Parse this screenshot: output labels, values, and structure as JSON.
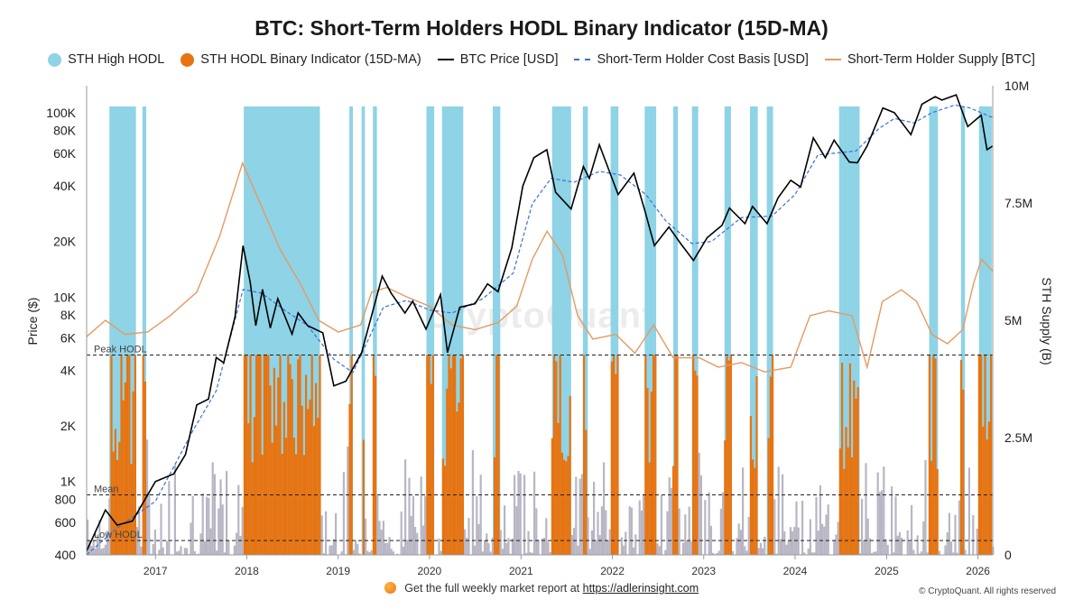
{
  "chart_data": {
    "type": "bar",
    "title": "BTC: Short-Term Holders HODL Binary Indicator (15D-MA)",
    "ylabel": "Price ($)",
    "y2label": "STH Supply (B)",
    "y_scale": "log",
    "ylim": [
      400,
      140000
    ],
    "y2lim": [
      0,
      10000000
    ],
    "x_range": [
      "2016-04-01",
      "2026-03-01"
    ],
    "x_ticks": [
      "2017",
      "2018",
      "2019",
      "2020",
      "2021",
      "2022",
      "2023",
      "2024",
      "2025",
      "2026"
    ],
    "y_ticks": [
      "100K",
      "80K",
      "60K",
      "40K",
      "20K",
      "10K",
      "8K",
      "6K",
      "4K",
      "2K",
      "1K",
      "800",
      "600",
      "400"
    ],
    "y2_ticks": [
      "10M",
      "7.5M",
      "5M",
      "2.5M",
      "0"
    ],
    "legend": [
      {
        "name": "STH High HODL",
        "color": "#8ed3e6",
        "kind": "dot"
      },
      {
        "name": "STH HODL Binary Indicator (15D-MA)",
        "color": "#e8730f",
        "kind": "dot"
      },
      {
        "name": "BTC Price [USD]",
        "color": "#000000",
        "kind": "line"
      },
      {
        "name": "Short-Term Holder Cost Basis [USD]",
        "color": "#3a6fd6",
        "kind": "dash"
      },
      {
        "name": "Short-Term Holder Supply [BTC]",
        "color": "#e59a62",
        "kind": "line"
      }
    ],
    "reference_lines": [
      {
        "label": "Peak HODL",
        "indicator_value": 14
      },
      {
        "label": "Mean",
        "indicator_value": 4.2
      },
      {
        "label": "Low HODL",
        "indicator_value": 1
      }
    ],
    "indicator_max": 15,
    "high_hodl_periods": [
      [
        "2016-07-01",
        "2016-10-15"
      ],
      [
        "2016-11-10",
        "2016-11-25"
      ],
      [
        "2017-12-20",
        "2018-10-20"
      ],
      [
        "2019-02-15",
        "2019-03-01"
      ],
      [
        "2019-04-05",
        "2019-04-18"
      ],
      [
        "2019-05-20",
        "2019-06-05"
      ],
      [
        "2019-12-20",
        "2020-01-20"
      ],
      [
        "2020-02-20",
        "2020-05-15"
      ],
      [
        "2020-09-10",
        "2020-10-10"
      ],
      [
        "2021-05-05",
        "2021-07-20"
      ],
      [
        "2021-09-05",
        "2021-09-25"
      ],
      [
        "2021-12-25",
        "2022-01-25"
      ],
      [
        "2022-05-10",
        "2022-06-25"
      ],
      [
        "2022-09-01",
        "2022-09-20"
      ],
      [
        "2022-11-15",
        "2022-12-10"
      ],
      [
        "2023-03-25",
        "2023-04-20"
      ],
      [
        "2023-07-05",
        "2023-08-05"
      ],
      [
        "2023-09-10",
        "2023-10-05"
      ],
      [
        "2024-06-25",
        "2024-09-15"
      ],
      [
        "2025-06-20",
        "2025-07-25"
      ],
      [
        "2025-10-25",
        "2025-11-10"
      ],
      [
        "2026-01-05",
        "2026-02-25"
      ]
    ],
    "series": [
      {
        "name": "BTC Price [USD]",
        "points": [
          [
            "2016-04-01",
            420
          ],
          [
            "2016-06-15",
            700
          ],
          [
            "2016-08-01",
            580
          ],
          [
            "2016-10-01",
            610
          ],
          [
            "2017-01-01",
            1000
          ],
          [
            "2017-03-15",
            1100
          ],
          [
            "2017-05-01",
            1400
          ],
          [
            "2017-06-15",
            2600
          ],
          [
            "2017-08-01",
            2800
          ],
          [
            "2017-09-01",
            4700
          ],
          [
            "2017-10-01",
            4400
          ],
          [
            "2017-11-15",
            7800
          ],
          [
            "2017-12-17",
            19000
          ],
          [
            "2018-01-15",
            12000
          ],
          [
            "2018-02-06",
            7000
          ],
          [
            "2018-03-05",
            11000
          ],
          [
            "2018-04-05",
            6800
          ],
          [
            "2018-05-05",
            9800
          ],
          [
            "2018-07-01",
            6300
          ],
          [
            "2018-07-25",
            8200
          ],
          [
            "2018-09-01",
            7000
          ],
          [
            "2018-11-01",
            6400
          ],
          [
            "2018-12-15",
            3300
          ],
          [
            "2019-02-01",
            3500
          ],
          [
            "2019-04-05",
            5000
          ],
          [
            "2019-06-26",
            13000
          ],
          [
            "2019-08-01",
            10500
          ],
          [
            "2019-09-25",
            8200
          ],
          [
            "2019-10-26",
            9500
          ],
          [
            "2019-12-18",
            6700
          ],
          [
            "2020-02-14",
            10300
          ],
          [
            "2020-03-13",
            5000
          ],
          [
            "2020-05-01",
            8800
          ],
          [
            "2020-07-01",
            9200
          ],
          [
            "2020-08-20",
            11800
          ],
          [
            "2020-10-01",
            10700
          ],
          [
            "2020-11-25",
            18500
          ],
          [
            "2021-01-08",
            40000
          ],
          [
            "2021-02-21",
            57000
          ],
          [
            "2021-04-14",
            63000
          ],
          [
            "2021-05-19",
            37000
          ],
          [
            "2021-07-20",
            30000
          ],
          [
            "2021-09-07",
            51000
          ],
          [
            "2021-10-01",
            44000
          ],
          [
            "2021-11-10",
            67000
          ],
          [
            "2022-01-24",
            36000
          ],
          [
            "2022-03-28",
            47000
          ],
          [
            "2022-05-12",
            29000
          ],
          [
            "2022-06-18",
            19000
          ],
          [
            "2022-08-15",
            24000
          ],
          [
            "2022-10-01",
            19500
          ],
          [
            "2022-11-21",
            15800
          ],
          [
            "2023-01-15",
            21000
          ],
          [
            "2023-03-15",
            24500
          ],
          [
            "2023-04-14",
            30400
          ],
          [
            "2023-06-15",
            25000
          ],
          [
            "2023-07-15",
            31000
          ],
          [
            "2023-09-11",
            25000
          ],
          [
            "2023-10-25",
            34500
          ],
          [
            "2023-12-15",
            43000
          ],
          [
            "2024-01-23",
            39500
          ],
          [
            "2024-03-14",
            73000
          ],
          [
            "2024-05-01",
            57000
          ],
          [
            "2024-06-05",
            71000
          ],
          [
            "2024-08-05",
            54000
          ],
          [
            "2024-09-06",
            53500
          ],
          [
            "2024-10-15",
            66000
          ],
          [
            "2024-12-17",
            106000
          ],
          [
            "2025-02-01",
            100000
          ],
          [
            "2025-04-08",
            76000
          ],
          [
            "2025-05-22",
            111000
          ],
          [
            "2025-07-14",
            122000
          ],
          [
            "2025-08-10",
            117000
          ],
          [
            "2025-10-06",
            125000
          ],
          [
            "2025-11-21",
            84000
          ],
          [
            "2026-01-14",
            97000
          ],
          [
            "2026-02-06",
            63000
          ],
          [
            "2026-03-01",
            66000
          ]
        ]
      },
      {
        "name": "Short-Term Holder Cost Basis [USD]",
        "points": [
          [
            "2016-04-01",
            400
          ],
          [
            "2016-08-01",
            560
          ],
          [
            "2017-01-01",
            780
          ],
          [
            "2017-06-01",
            1900
          ],
          [
            "2017-09-01",
            3100
          ],
          [
            "2017-12-17",
            11000
          ],
          [
            "2018-03-01",
            10500
          ],
          [
            "2018-06-01",
            8500
          ],
          [
            "2018-09-01",
            7000
          ],
          [
            "2018-12-15",
            4600
          ],
          [
            "2019-03-01",
            3900
          ],
          [
            "2019-07-01",
            8800
          ],
          [
            "2019-10-01",
            9600
          ],
          [
            "2020-01-01",
            8500
          ],
          [
            "2020-04-01",
            8200
          ],
          [
            "2020-08-01",
            9800
          ],
          [
            "2020-12-01",
            13500
          ],
          [
            "2021-02-15",
            32000
          ],
          [
            "2021-05-01",
            44000
          ],
          [
            "2021-08-01",
            42000
          ],
          [
            "2021-11-10",
            48000
          ],
          [
            "2022-02-01",
            46000
          ],
          [
            "2022-05-15",
            36000
          ],
          [
            "2022-08-01",
            26000
          ],
          [
            "2022-11-15",
            19500
          ],
          [
            "2023-02-01",
            20000
          ],
          [
            "2023-06-01",
            27000
          ],
          [
            "2023-10-01",
            27500
          ],
          [
            "2024-01-01",
            36000
          ],
          [
            "2024-04-01",
            59000
          ],
          [
            "2024-09-01",
            62000
          ],
          [
            "2024-12-01",
            82000
          ],
          [
            "2025-02-01",
            93000
          ],
          [
            "2025-04-20",
            88000
          ],
          [
            "2025-07-01",
            100000
          ],
          [
            "2025-10-01",
            110000
          ],
          [
            "2025-12-01",
            106000
          ],
          [
            "2026-03-01",
            94000
          ]
        ]
      },
      {
        "name": "Short-Term Holder Supply [BTC]",
        "points": [
          [
            "2016-04-01",
            4650000
          ],
          [
            "2016-06-15",
            5000000
          ],
          [
            "2016-09-01",
            4700000
          ],
          [
            "2016-12-01",
            4750000
          ],
          [
            "2017-03-01",
            5100000
          ],
          [
            "2017-06-15",
            5600000
          ],
          [
            "2017-09-15",
            6800000
          ],
          [
            "2017-12-15",
            8350000
          ],
          [
            "2018-02-15",
            7600000
          ],
          [
            "2018-05-15",
            6500000
          ],
          [
            "2018-08-01",
            5800000
          ],
          [
            "2018-10-15",
            5000000
          ],
          [
            "2019-01-01",
            4750000
          ],
          [
            "2019-04-01",
            4900000
          ],
          [
            "2019-05-15",
            5600000
          ],
          [
            "2019-07-15",
            5700000
          ],
          [
            "2019-10-01",
            5500000
          ],
          [
            "2020-01-01",
            5300000
          ],
          [
            "2020-04-01",
            4900000
          ],
          [
            "2020-07-01",
            4800000
          ],
          [
            "2020-10-01",
            4950000
          ],
          [
            "2020-12-15",
            5300000
          ],
          [
            "2021-02-15",
            6300000
          ],
          [
            "2021-04-15",
            6900000
          ],
          [
            "2021-06-15",
            6400000
          ],
          [
            "2021-08-15",
            5100000
          ],
          [
            "2021-10-15",
            4600000
          ],
          [
            "2022-01-15",
            4700000
          ],
          [
            "2022-04-01",
            4300000
          ],
          [
            "2022-06-15",
            4900000
          ],
          [
            "2022-09-01",
            4200000
          ],
          [
            "2022-12-15",
            4200000
          ],
          [
            "2023-03-01",
            4000000
          ],
          [
            "2023-06-01",
            4100000
          ],
          [
            "2023-09-01",
            3900000
          ],
          [
            "2023-12-15",
            4000000
          ],
          [
            "2024-03-01",
            5100000
          ],
          [
            "2024-05-15",
            5200000
          ],
          [
            "2024-08-15",
            5100000
          ],
          [
            "2024-10-15",
            4000000
          ],
          [
            "2024-12-15",
            5400000
          ],
          [
            "2025-03-01",
            5650000
          ],
          [
            "2025-05-01",
            5400000
          ],
          [
            "2025-07-01",
            4700000
          ],
          [
            "2025-09-01",
            4500000
          ],
          [
            "2025-11-01",
            4800000
          ],
          [
            "2025-12-15",
            5800000
          ],
          [
            "2026-01-15",
            6300000
          ],
          [
            "2026-03-01",
            6050000
          ]
        ]
      }
    ]
  },
  "footer": {
    "text": "Get the full weekly market report at",
    "link": "https://adlerinsight.com",
    "copyright": "© CryptoQuant. All rights reserved"
  },
  "watermark": "CryptoQuant"
}
